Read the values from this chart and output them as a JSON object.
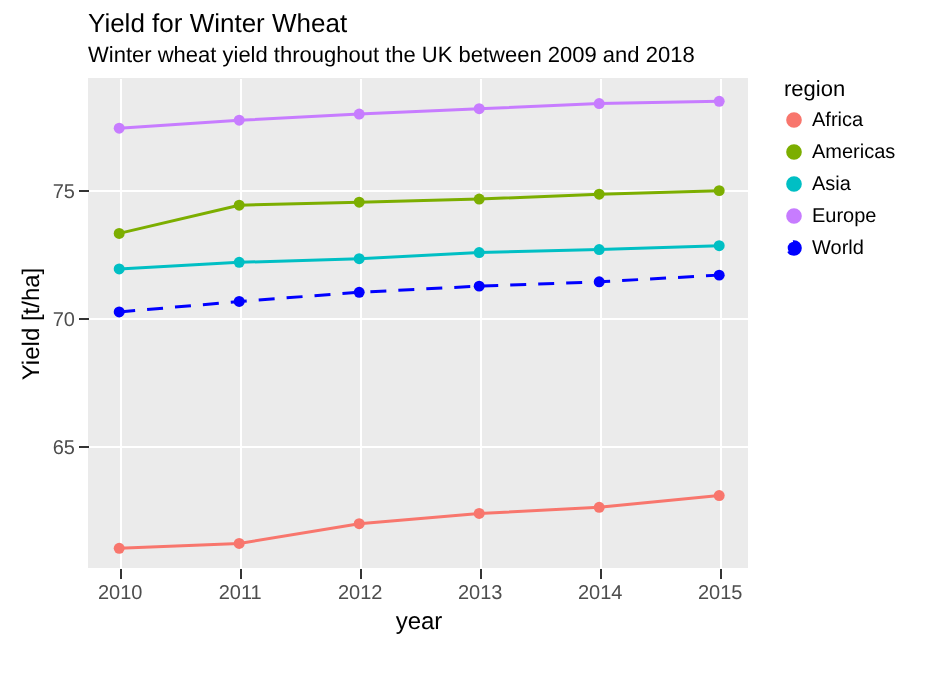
{
  "chart_data": {
    "type": "line",
    "title": "Yield for Winter Wheat",
    "subtitle": "Winter wheat yield throughout the UK between 2009 and 2018",
    "xlabel": "year",
    "ylabel": "Yield [t/ha]",
    "legend_title": "region",
    "x": [
      2010,
      2011,
      2012,
      2013,
      2014,
      2015
    ],
    "series": [
      {
        "name": "Africa",
        "color": "#f8766d",
        "values": [
          61.03,
          61.22,
          61.99,
          62.39,
          62.63,
          63.09
        ]
      },
      {
        "name": "Americas",
        "color": "#7cae00",
        "values": [
          73.33,
          74.43,
          74.55,
          74.67,
          74.86,
          75.0
        ]
      },
      {
        "name": "Asia",
        "color": "#00bfc4",
        "values": [
          71.94,
          72.2,
          72.34,
          72.58,
          72.7,
          72.85
        ]
      },
      {
        "name": "Europe",
        "color": "#c77cff",
        "values": [
          77.44,
          77.75,
          77.99,
          78.2,
          78.4,
          78.49
        ]
      },
      {
        "name": "World",
        "color": "#0000ff",
        "line_style": "dashed",
        "values": [
          70.26,
          70.67,
          71.03,
          71.27,
          71.44,
          71.7
        ]
      }
    ],
    "xlim": [
      2009.74,
      2015.24
    ],
    "ylim": [
      60.26,
      79.4
    ],
    "xticks": [
      2010,
      2011,
      2012,
      2013,
      2014,
      2015
    ],
    "yticks": [
      65,
      70,
      75
    ],
    "grid": true,
    "legend": "right",
    "marker": "circle",
    "line_style": "solid"
  }
}
